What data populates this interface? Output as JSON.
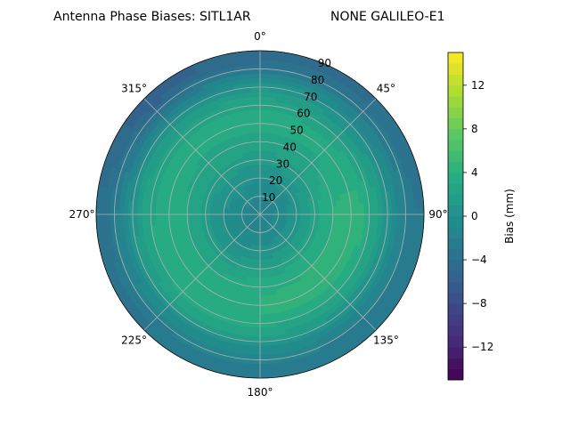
{
  "chart_data": {
    "type": "heatmap",
    "projection": "polar",
    "title_left": "Antenna Phase Biases: SITL1AR",
    "title_right": "NONE GALILEO-E1",
    "azimuth_ticks": [
      {
        "deg": 0,
        "label": "0°"
      },
      {
        "deg": 45,
        "label": "45°"
      },
      {
        "deg": 90,
        "label": "90°"
      },
      {
        "deg": 135,
        "label": "135°"
      },
      {
        "deg": 180,
        "label": "180°"
      },
      {
        "deg": 225,
        "label": "225°"
      },
      {
        "deg": 270,
        "label": "270°"
      },
      {
        "deg": 315,
        "label": "315°"
      }
    ],
    "radial_ticks": [
      {
        "value": 10,
        "label": "10"
      },
      {
        "value": 20,
        "label": "20"
      },
      {
        "value": 30,
        "label": "30"
      },
      {
        "value": 40,
        "label": "40"
      },
      {
        "value": 50,
        "label": "50"
      },
      {
        "value": 60,
        "label": "60"
      },
      {
        "value": 70,
        "label": "70"
      },
      {
        "value": 80,
        "label": "80"
      },
      {
        "value": 90,
        "label": "90"
      }
    ],
    "radial_range": [
      0,
      90
    ],
    "grid": true,
    "colormap": "viridis",
    "colorbar": {
      "label": "Bias (mm)",
      "range": [
        -15,
        15
      ],
      "ticks": [
        {
          "value": 12,
          "label": "12"
        },
        {
          "value": 8,
          "label": "8"
        },
        {
          "value": 4,
          "label": "4"
        },
        {
          "value": 0,
          "label": "0"
        },
        {
          "value": -4,
          "label": "−4"
        },
        {
          "value": -8,
          "label": "−8"
        },
        {
          "value": -12,
          "label": "−12"
        }
      ]
    },
    "bias_field_mm": [
      {
        "zenith": 5,
        "values": [
          -1.5,
          -1.5,
          -1.5,
          -1.5,
          -1.5,
          -1.5,
          -1.5,
          -1.5
        ]
      },
      {
        "zenith": 15,
        "values": [
          -0.5,
          -0.5,
          0.0,
          0.0,
          -0.5,
          -0.5,
          -0.5,
          0.0
        ]
      },
      {
        "zenith": 25,
        "values": [
          0.5,
          1.0,
          1.5,
          1.5,
          1.0,
          0.5,
          0.5,
          1.0
        ]
      },
      {
        "zenith": 35,
        "values": [
          2.0,
          2.5,
          3.5,
          3.5,
          3.0,
          2.5,
          2.5,
          2.5
        ]
      },
      {
        "zenith": 45,
        "values": [
          3.0,
          3.0,
          4.5,
          4.5,
          4.0,
          3.5,
          3.5,
          3.0
        ]
      },
      {
        "zenith": 55,
        "values": [
          3.5,
          3.0,
          4.5,
          4.0,
          4.0,
          4.0,
          3.5,
          3.5
        ]
      },
      {
        "zenith": 65,
        "values": [
          2.0,
          1.0,
          2.0,
          2.0,
          2.5,
          2.5,
          2.0,
          1.5
        ]
      },
      {
        "zenith": 75,
        "values": [
          -0.5,
          -1.5,
          -1.0,
          -1.0,
          -0.5,
          -0.5,
          -1.0,
          -2.5
        ]
      },
      {
        "zenith": 85,
        "values": [
          -4.5,
          -4.0,
          -3.0,
          -3.0,
          -2.5,
          -3.0,
          -3.5,
          -5.5
        ]
      }
    ],
    "bias_field_azimuths": [
      0,
      45,
      90,
      135,
      180,
      225,
      270,
      315
    ]
  }
}
